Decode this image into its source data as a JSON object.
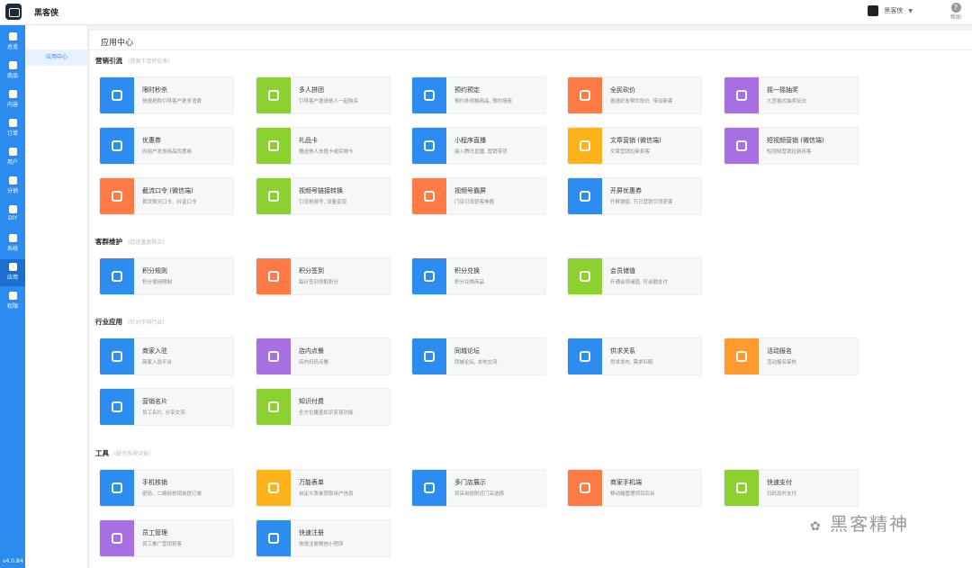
{
  "header": {
    "brand": "黑客侠",
    "user_name": "黑客侠",
    "help_label": "帮助"
  },
  "sidebar": {
    "items": [
      {
        "label": "总览",
        "icon": "pie-chart-icon"
      },
      {
        "label": "商品",
        "icon": "product-icon"
      },
      {
        "label": "内容",
        "icon": "list-icon"
      },
      {
        "label": "订单",
        "icon": "order-icon"
      },
      {
        "label": "用户",
        "icon": "user-icon"
      },
      {
        "label": "分销",
        "icon": "users-icon"
      },
      {
        "label": "DIY",
        "icon": "diy-icon"
      },
      {
        "label": "系统",
        "icon": "gear-icon"
      },
      {
        "label": "应用",
        "icon": "grid-icon"
      },
      {
        "label": "权限",
        "icon": "lock-icon"
      }
    ],
    "active": "应用",
    "version": "v4.0.84"
  },
  "subnav": {
    "item": "应用中心"
  },
  "main": {
    "title": "应用中心",
    "sections": [
      {
        "title": "营销引流",
        "subtitle": "(提高下单转化率)",
        "cards": [
          {
            "name": "限时秒杀",
            "desc": "快速抢购引导客户更多消费",
            "color": "#2d8cf0"
          },
          {
            "name": "多人拼团",
            "desc": "引导客户邀请他人一起购买",
            "color": "#8bd12f"
          },
          {
            "name": "预约预定",
            "desc": "预约多规格商品, 预约场座",
            "color": "#2d8cf0"
          },
          {
            "name": "全民砍价",
            "desc": "邀请好友帮忙砍价, 带动新客",
            "color": "#ff7a45"
          },
          {
            "name": "摇一摇抽奖",
            "desc": "九宫格式抽奖玩法",
            "color": "#a86fe3"
          },
          {
            "name": "优惠券",
            "desc": "向用户发放商品优惠券",
            "color": "#2d8cf0"
          },
          {
            "name": "礼品卡",
            "desc": "赠送他人充值卡或实物卡",
            "color": "#8bd12f"
          },
          {
            "name": "小程序直播",
            "desc": "接入腾讯直播, 营销带货",
            "color": "#2d8cf0"
          },
          {
            "name": "文章营销 (微信端)",
            "desc": "文章营销拉新拓客",
            "color": "#ffb31a"
          },
          {
            "name": "短视频营销 (微信端)",
            "desc": "短视频营销拉新拓客",
            "color": "#a86fe3"
          },
          {
            "name": "截流口令 (微信端)",
            "desc": "首页聊天口令、抖音口令",
            "color": "#ff7a45"
          },
          {
            "name": "视频号链接转换",
            "desc": "引流视频号, 流量变现",
            "color": "#8bd12f"
          },
          {
            "name": "视频号霸屏",
            "desc": "门店引流获客神器",
            "color": "#ff7a45"
          },
          {
            "name": "开屏优惠券",
            "desc": "开屏弹窗, 节日营销引流获客",
            "color": "#2d8cf0"
          }
        ]
      },
      {
        "title": "客群维护",
        "subtitle": "(促进重复购买)",
        "cards": [
          {
            "name": "积分规则",
            "desc": "积分使用限制",
            "color": "#2d8cf0"
          },
          {
            "name": "积分签到",
            "desc": "每日签到领取积分",
            "color": "#ff7a45"
          },
          {
            "name": "积分兑换",
            "desc": "积分兑换商品",
            "color": "#2d8cf0"
          },
          {
            "name": "会员储值",
            "desc": "开通会员储值, 可余额支付",
            "color": "#8bd12f"
          }
        ]
      },
      {
        "title": "行业应用",
        "subtitle": "(针对不同行业)",
        "cards": [
          {
            "name": "商家入驻",
            "desc": "商家入驻平台",
            "color": "#2d8cf0"
          },
          {
            "name": "店内点餐",
            "desc": "店内扫码点餐",
            "color": "#a86fe3"
          },
          {
            "name": "同城论坛",
            "desc": "同城论坛, 本地交流",
            "color": "#2d8cf0"
          },
          {
            "name": "供求关系",
            "desc": "供求发布, 需求匹配",
            "color": "#2d8cf0"
          },
          {
            "name": "活动报名",
            "desc": "活动报名审核",
            "color": "#ff9a2e"
          },
          {
            "name": "营销名片",
            "desc": "员工名片, 分享交流",
            "color": "#2d8cf0"
          },
          {
            "name": "知识付费",
            "desc": "全方位覆盖知识变现功能",
            "color": "#8bd12f"
          }
        ]
      },
      {
        "title": "工具",
        "subtitle": "(配齐系统功能)",
        "cards": [
          {
            "name": "手机核销",
            "desc": "密码、二维码核销自提订单",
            "color": "#2d8cf0"
          },
          {
            "name": "万能表单",
            "desc": "自定义表单获取用户信息",
            "color": "#ffb31a"
          },
          {
            "name": "多门店展示",
            "desc": "到店自提附近门店选择",
            "color": "#2d8cf0"
          },
          {
            "name": "商家手机端",
            "desc": "移动端管理项目后台",
            "color": "#ff7a45"
          },
          {
            "name": "快速支付",
            "desc": "扫码及时支付",
            "color": "#8bd12f"
          },
          {
            "name": "员工管理",
            "desc": "员工推广营销获客",
            "color": "#a86fe3"
          },
          {
            "name": "快速注册",
            "desc": "快速注册微信小程序",
            "color": "#2d8cf0"
          }
        ]
      }
    ]
  },
  "watermark": "黑客精神"
}
